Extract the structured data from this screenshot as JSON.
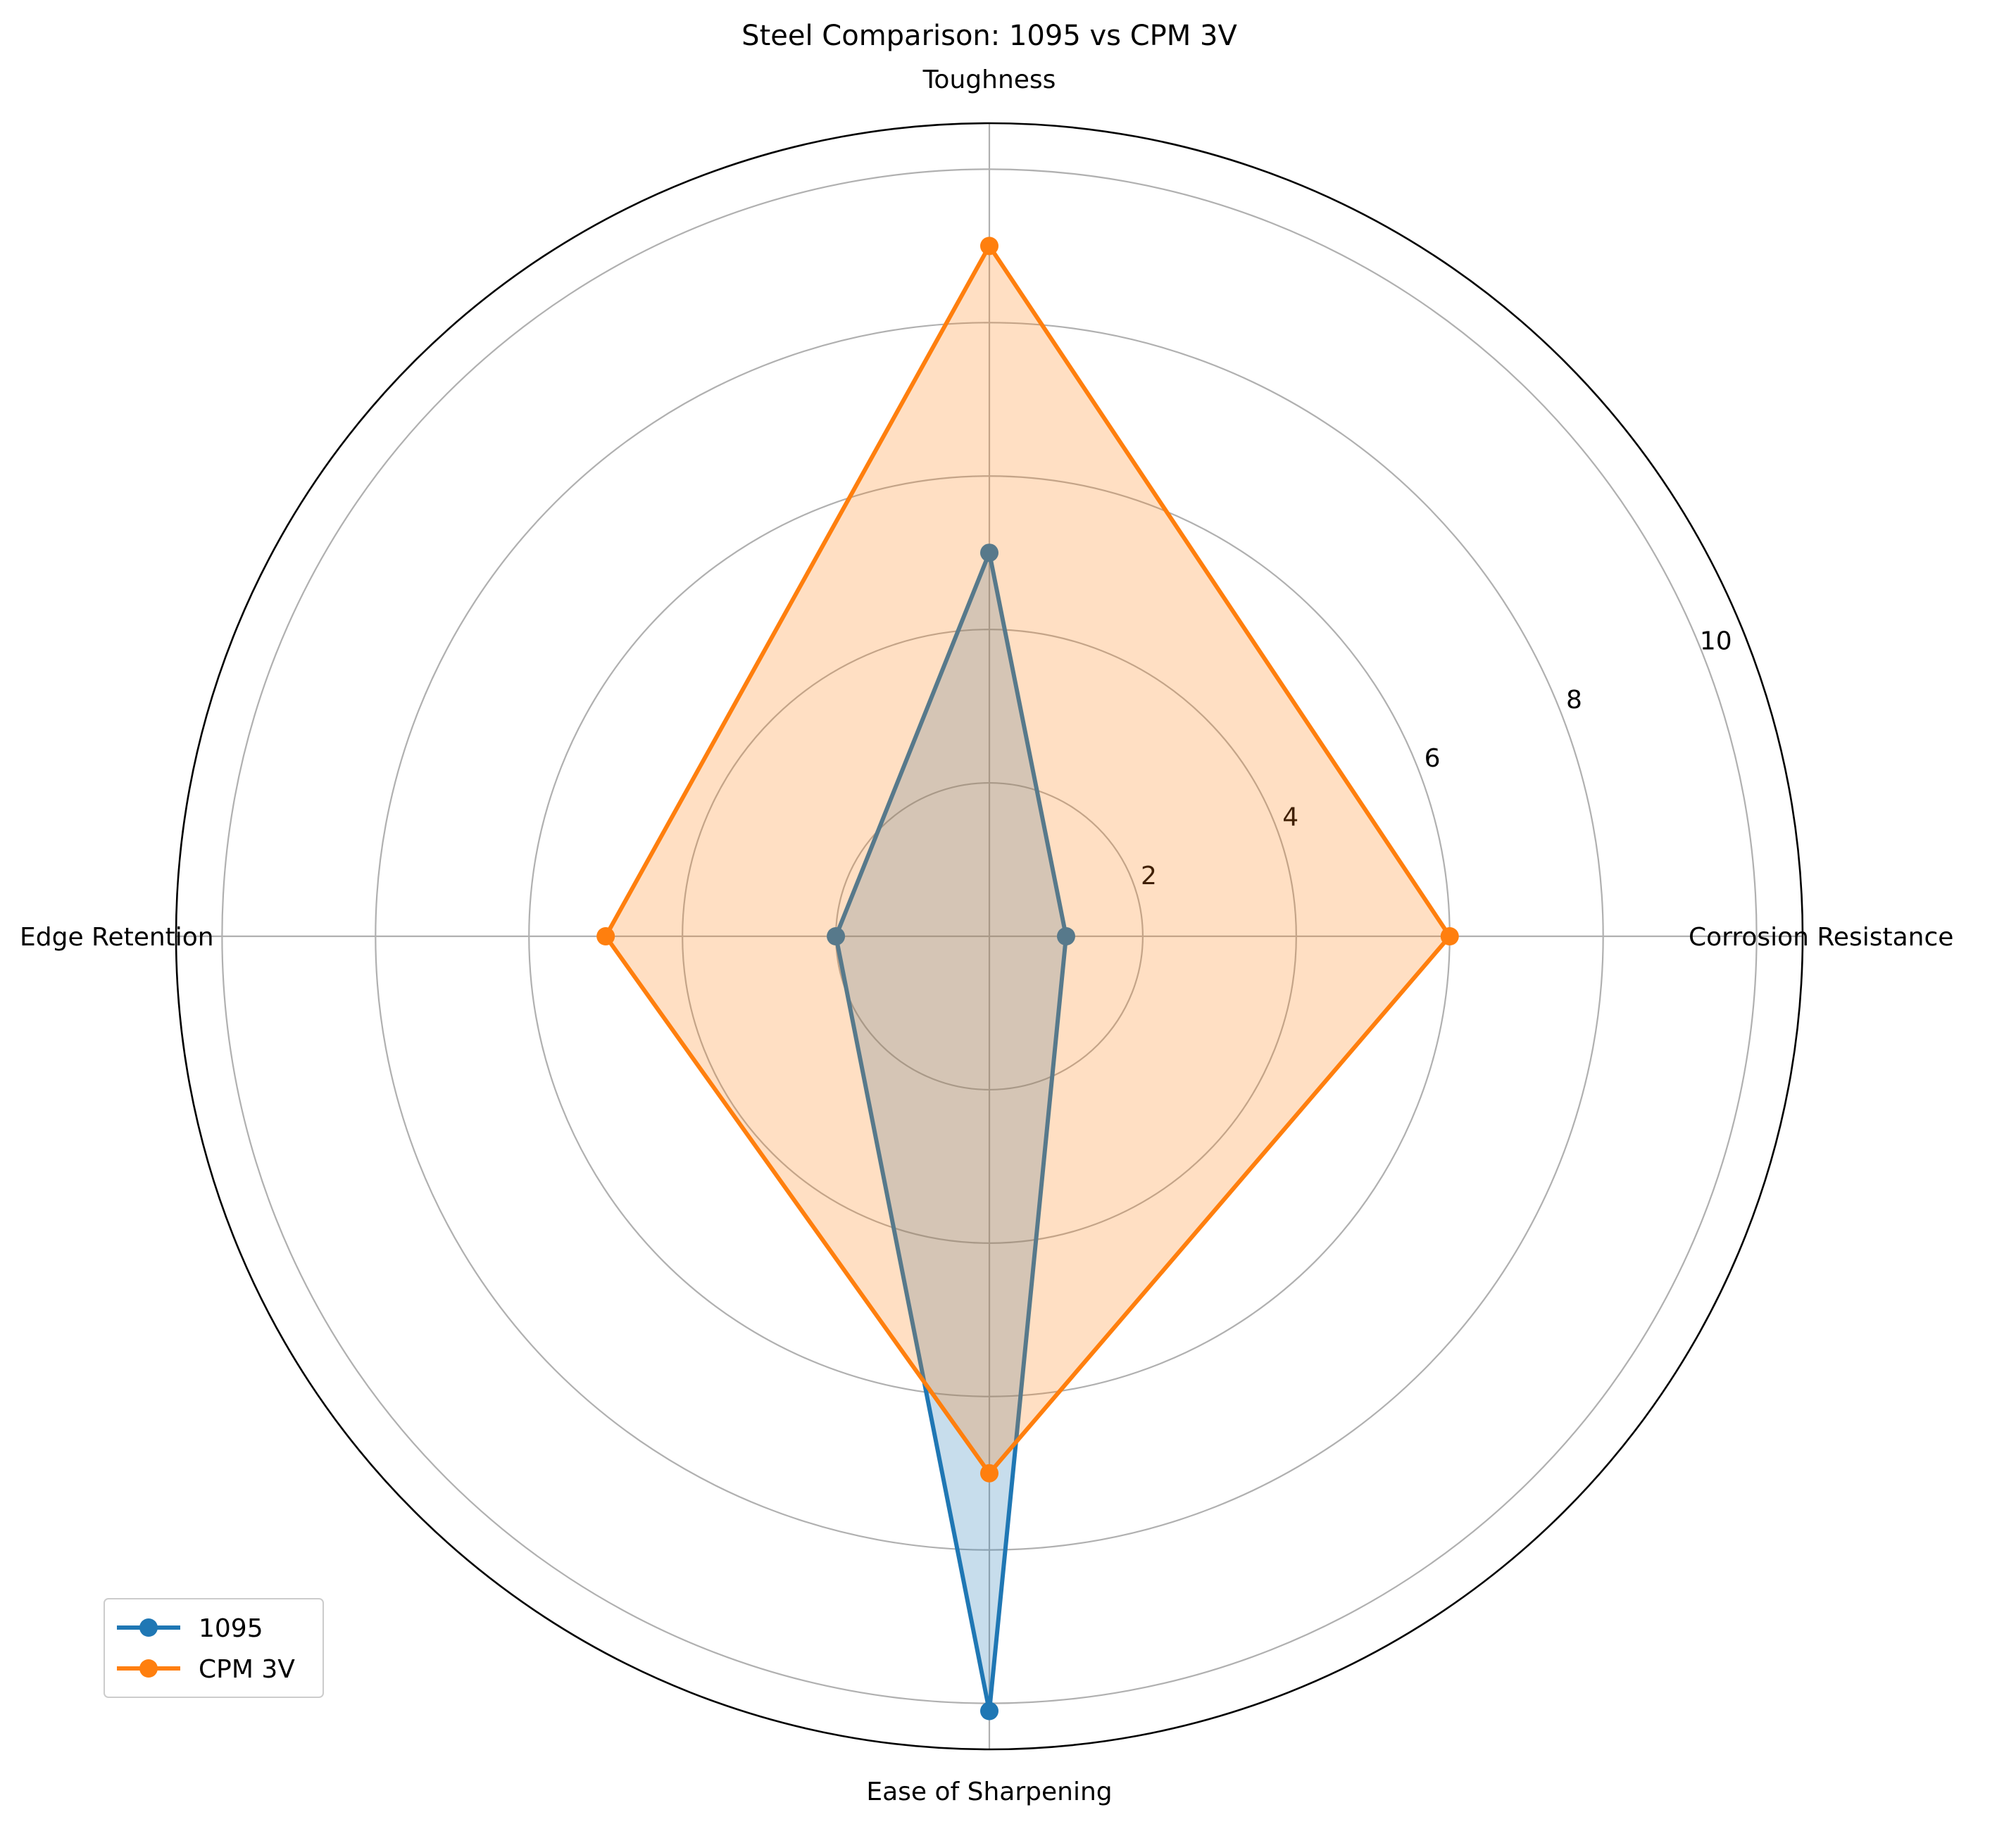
{
  "chart_data": {
    "type": "radar",
    "title": "Steel Comparison: 1095 vs CPM 3V",
    "categories": [
      "Corrosion Resistance",
      "Toughness",
      "Edge Retention",
      "Ease of Sharpening"
    ],
    "series": [
      {
        "name": "1095",
        "values": [
          1,
          5,
          2,
          10.1
        ],
        "color": "#1f77b4"
      },
      {
        "name": "CPM 3V",
        "values": [
          6,
          9,
          5,
          7
        ],
        "color": "#ff7f0e"
      }
    ],
    "radial_ticks": [
      "2",
      "4",
      "6",
      "8",
      "10"
    ],
    "radial_tick_values": [
      2,
      4,
      6,
      8,
      10
    ],
    "rlim": [
      0,
      10.6
    ],
    "grid": true,
    "legend_position": "lower-left"
  }
}
